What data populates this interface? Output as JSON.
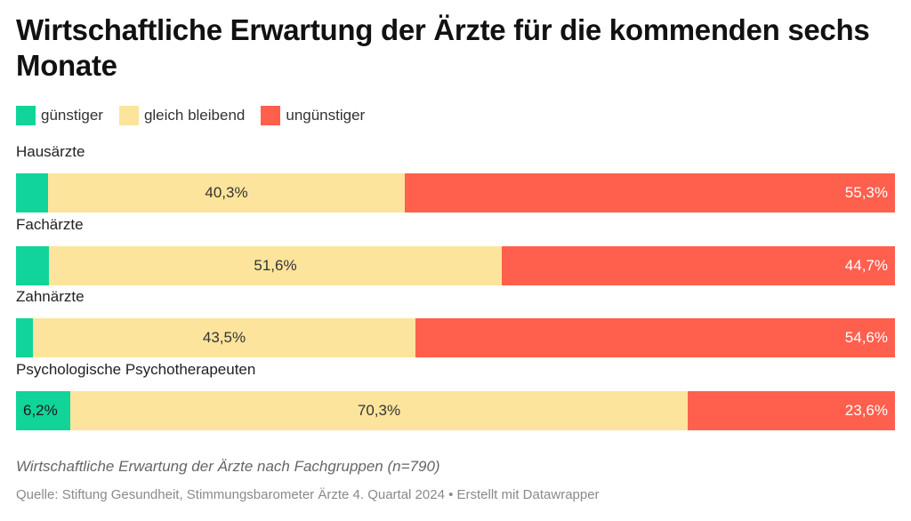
{
  "title": "Wirtschaftliche Erwartung der Ärzte für die kommenden sechs Monate",
  "subtitle": "Wirtschaftliche Erwartung der Ärzte nach Fachgruppen (n=790)",
  "source": "Quelle: Stiftung Gesundheit, Stimmungsbarometer Ärzte 4. Quartal 2024 • Erstellt mit Datawrapper",
  "chart_data": {
    "type": "bar",
    "orientation": "horizontal",
    "stacked": true,
    "percent_stacked": true,
    "categories": [
      "Hausärzte",
      "Fachärzte",
      "Zahnärzte",
      "Psychologische Psychotherapeuten"
    ],
    "series": [
      {
        "name": "günstiger",
        "color": "#10d49a",
        "values": [
          3.6,
          3.7,
          1.9,
          6.2
        ],
        "labels": [
          "",
          "",
          "",
          "6,2%"
        ]
      },
      {
        "name": "gleich bleibend",
        "color": "#fde49c",
        "values": [
          40.3,
          51.6,
          43.5,
          70.3
        ],
        "labels": [
          "40,3%",
          "51,6%",
          "43,5%",
          "70,3%"
        ]
      },
      {
        "name": "ungünstiger",
        "color": "#ff5f4d",
        "values": [
          55.3,
          44.7,
          54.6,
          23.6
        ],
        "labels": [
          "55,3%",
          "44,7%",
          "54,6%",
          "23,6%"
        ]
      }
    ],
    "xlim": [
      0,
      100
    ],
    "legend_position": "top-left",
    "grid": false
  }
}
